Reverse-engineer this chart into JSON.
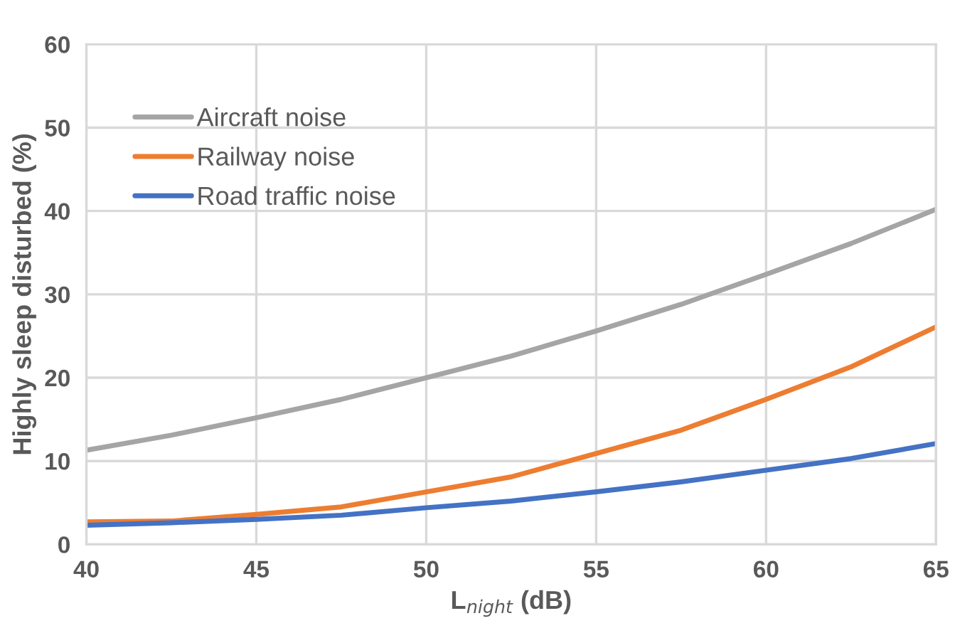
{
  "chart_data": {
    "type": "line",
    "xlabel": "L$_{night}$ (dB)",
    "ylabel": "Highly sleep disturbed (%)",
    "x": [
      40,
      42.5,
      45,
      47.5,
      50,
      52.5,
      55,
      57.5,
      60,
      62.5,
      65
    ],
    "series": [
      {
        "name": "Aircraft noise",
        "color": "#a5a5a5",
        "values": [
          11.3,
          13.1,
          15.2,
          17.4,
          20.0,
          22.6,
          25.6,
          28.8,
          32.4,
          36.1,
          40.2
        ]
      },
      {
        "name": "Railway noise",
        "color": "#ed7d31",
        "values": [
          2.7,
          2.8,
          3.6,
          4.5,
          6.3,
          8.1,
          10.9,
          13.7,
          17.4,
          21.3,
          26.1
        ]
      },
      {
        "name": "Road traffic noise",
        "color": "#4472c4",
        "values": [
          2.3,
          2.6,
          3.0,
          3.5,
          4.4,
          5.2,
          6.3,
          7.5,
          8.9,
          10.3,
          12.1
        ]
      }
    ],
    "xlim": [
      40,
      65
    ],
    "xticks": [
      40,
      45,
      50,
      55,
      60,
      65
    ],
    "ylim": [
      0,
      60
    ],
    "yticks": [
      0,
      10,
      20,
      30,
      40,
      50,
      60
    ],
    "grid": true,
    "legend": "top left",
    "marker": "none",
    "line_style": "solid"
  }
}
